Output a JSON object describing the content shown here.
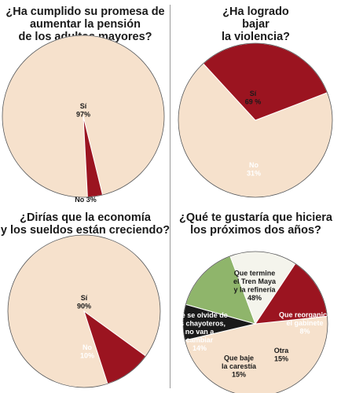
{
  "colors": {
    "cream": "#f6e1cc",
    "red": "#9b1420",
    "white": "#f4f4ec",
    "green": "#8fb56b",
    "black": "#1a1a1a",
    "outline": "#555555"
  },
  "chart_data": [
    {
      "type": "pie",
      "title_lines": [
        "¿Ha cumplido su promesa de",
        "aumentar la pensión",
        "de los adultos mayores?"
      ],
      "slices": [
        {
          "label_lines": [
            "Sí",
            "97%"
          ],
          "name": "Sí",
          "value": 97,
          "color": "cream"
        },
        {
          "label_lines": [
            "No 3%"
          ],
          "name": "No",
          "value": 3,
          "color": "red"
        }
      ]
    },
    {
      "type": "pie",
      "title_lines": [
        "¿Ha logrado",
        "bajar",
        "la violencia?"
      ],
      "slices": [
        {
          "label_lines": [
            "Sí",
            "69 %"
          ],
          "name": "Sí",
          "value": 69,
          "color": "cream"
        },
        {
          "label_lines": [
            "No",
            "31%"
          ],
          "name": "No",
          "value": 31,
          "color": "red"
        }
      ]
    },
    {
      "type": "pie",
      "title_lines": [
        "¿Dirías que la economía",
        "y los sueldos están creciendo?"
      ],
      "slices": [
        {
          "label_lines": [
            "Sí",
            "90%"
          ],
          "name": "Sí",
          "value": 90,
          "color": "cream"
        },
        {
          "label_lines": [
            "No",
            "10%"
          ],
          "name": "No",
          "value": 10,
          "color": "red"
        }
      ]
    },
    {
      "type": "pie",
      "title_lines": [
        "¿Qué te gustaría que hiciera",
        "los próximos dos años?"
      ],
      "slices": [
        {
          "label_lines": [
            "Que termine",
            "el Tren Maya",
            "y la refinería",
            "48%"
          ],
          "name": "Que termine el Tren Maya y la refinería",
          "value": 48,
          "color": "cream"
        },
        {
          "label_lines": [
            "Que reorganice",
            "el gabinete",
            "8%"
          ],
          "name": "Que reorganice el gabinete",
          "value": 8,
          "color": "black"
        },
        {
          "label_lines": [
            "Otra",
            "15%"
          ],
          "name": "Otra",
          "value": 15,
          "color": "green"
        },
        {
          "label_lines": [
            "Que baje",
            "la carestía",
            "15%"
          ],
          "name": "Que baje la carestía",
          "value": 15,
          "color": "white"
        },
        {
          "label_lines": [
            "Que se olvide de",
            "los chayoteros,",
            "no van a",
            "cambiar",
            "14%"
          ],
          "name": "Que se olvide de los chayoteros, no van a cambiar",
          "value": 14,
          "color": "red"
        }
      ]
    }
  ]
}
